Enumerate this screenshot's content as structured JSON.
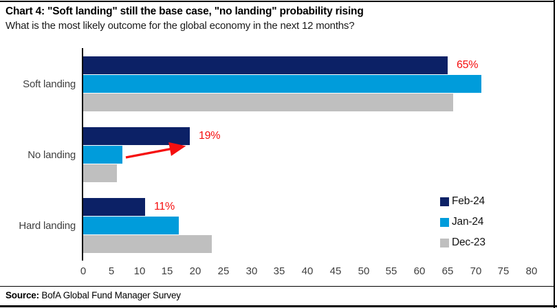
{
  "header": {
    "title": "Chart 4: \"Soft landing\" still the base case, \"no landing\" probability rising",
    "subtitle": "What is the most likely outcome for the global economy in the next 12 months?"
  },
  "chart_data": {
    "type": "bar",
    "orientation": "horizontal",
    "categories": [
      "Soft landing",
      "No landing",
      "Hard landing"
    ],
    "series": [
      {
        "name": "Feb-24",
        "color": "#0C2166",
        "values": [
          65,
          19,
          11
        ]
      },
      {
        "name": "Jan-24",
        "color": "#009CDB",
        "values": [
          71,
          7,
          17
        ]
      },
      {
        "name": "Dec-23",
        "color": "#BFBFBF",
        "values": [
          66,
          6,
          23
        ]
      }
    ],
    "xlim": [
      0,
      80
    ],
    "xticks": [
      0,
      5,
      10,
      15,
      20,
      25,
      30,
      35,
      40,
      45,
      50,
      55,
      60,
      65,
      70,
      75,
      80
    ],
    "annotations": [
      {
        "text": "65%",
        "category": "Soft landing",
        "series": "Feb-24"
      },
      {
        "text": "19%",
        "category": "No landing",
        "series": "Feb-24"
      },
      {
        "text": "11%",
        "category": "Hard landing",
        "series": "Feb-24"
      }
    ],
    "annotation_color": "#F50F0F",
    "arrow": {
      "color": "#F50F0F",
      "description": "red arrow from Jan-24 No landing bar pointing up-right toward 19% label"
    },
    "legend_position": "bottom-right",
    "grid": false
  },
  "footer": {
    "source_label": "Source:",
    "source_text": " BofA Global Fund Manager Survey"
  }
}
